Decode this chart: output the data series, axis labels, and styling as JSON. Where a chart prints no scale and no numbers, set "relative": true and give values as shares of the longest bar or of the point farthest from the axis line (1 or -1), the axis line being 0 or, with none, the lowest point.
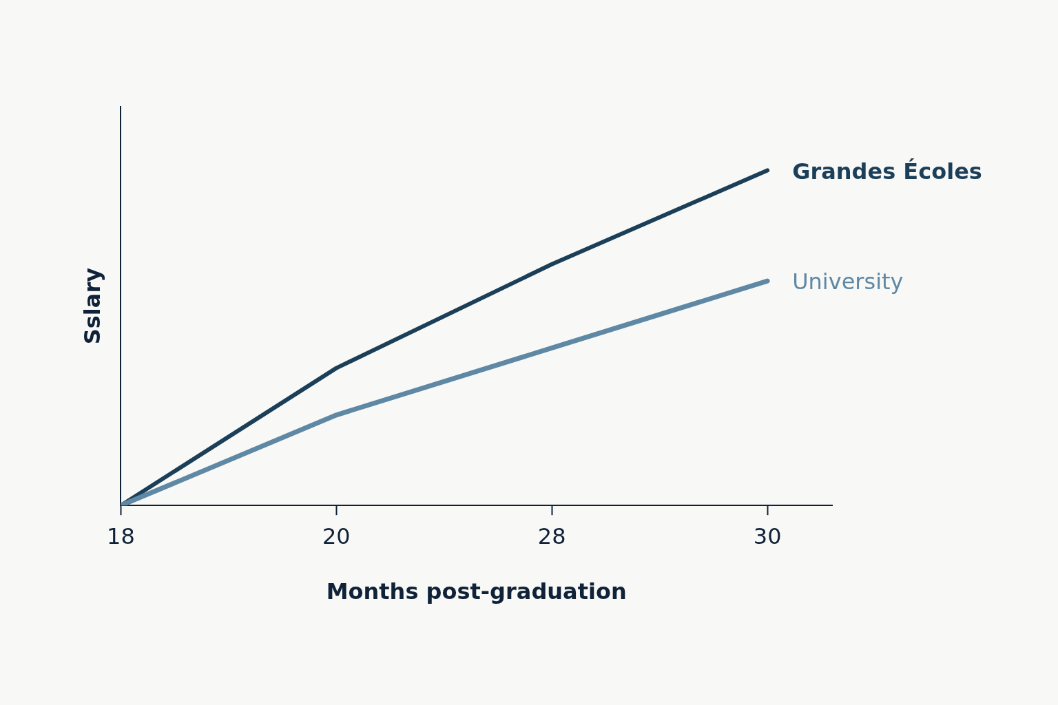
{
  "chart_data": {
    "type": "line",
    "xlabel": "Months post-graduation",
    "ylabel": "Sslary",
    "categories": [
      "18",
      "20",
      "28",
      "30"
    ],
    "relative": true,
    "series": [
      {
        "name": "Grandes Écoles",
        "color": "#1b3f58",
        "values": [
          0,
          0.41,
          0.72,
          1
        ]
      },
      {
        "name": "University",
        "color": "#5f88a4",
        "values": [
          0,
          0.27,
          0.47,
          0.67
        ]
      }
    ],
    "legend": false,
    "grid": false,
    "marker": "none"
  }
}
